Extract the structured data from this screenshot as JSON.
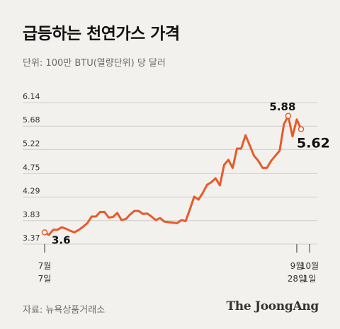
{
  "header": {
    "title": "급등하는 천연가스 가격",
    "subtitle": "단위: 100만 BTU(열량단위) 당 달러"
  },
  "footer": {
    "source": "자료: 뉴욕상품거래소",
    "brand": "The JoongAng"
  },
  "colors": {
    "line": "#e85a2a",
    "grid": "#d0cec9",
    "background": "#f2f1ee"
  },
  "chart_data": {
    "type": "line",
    "title": "급등하는 천연가스 가격",
    "subtitle": "단위: 100만 BTU(열량단위) 당 달러",
    "ylim": [
      3.37,
      6.14
    ],
    "yticks": [
      "6.14",
      "5.68",
      "5.22",
      "4.75",
      "4.29",
      "3.83",
      "3.37"
    ],
    "xtick_labels": [
      {
        "line1": "7월",
        "line2": "7일",
        "index": 0
      },
      {
        "line1": "9월",
        "line2": "28일",
        "index": 59
      },
      {
        "line1": "10월",
        "line2": "1일",
        "index": 62
      }
    ],
    "series": [
      {
        "values": [
          3.6,
          3.55,
          3.65,
          3.65,
          3.7,
          3.67,
          3.63,
          3.6,
          3.65,
          3.71,
          3.78,
          3.91,
          3.91,
          4.0,
          4.0,
          3.89,
          3.9,
          3.98,
          3.84,
          3.86,
          3.95,
          4.02,
          4.02,
          3.96,
          3.97,
          3.91,
          3.84,
          3.88,
          3.81,
          3.8,
          3.79,
          3.78,
          3.84,
          3.82,
          4.05,
          4.3,
          4.24,
          4.37,
          4.53,
          4.58,
          4.66,
          4.52,
          4.92,
          5.02,
          4.86,
          5.24,
          5.24,
          5.5,
          5.3,
          5.1,
          5.0,
          4.86,
          4.86,
          5.0,
          5.1,
          5.2,
          5.72,
          5.88,
          5.48,
          5.81,
          5.62
        ]
      }
    ],
    "annotations": [
      {
        "label": "3.6",
        "index": 0,
        "value": 3.6
      },
      {
        "label": "5.88",
        "index": 57,
        "value": 5.88
      },
      {
        "label": "5.62",
        "index": 60,
        "value": 5.62
      }
    ]
  }
}
